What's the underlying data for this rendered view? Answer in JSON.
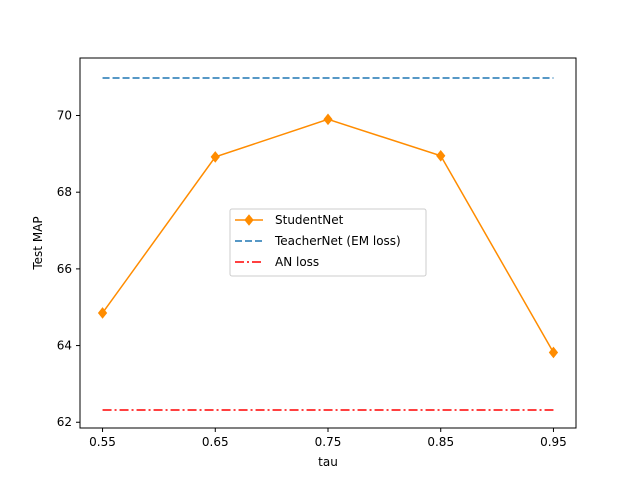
{
  "chart_data": {
    "type": "line",
    "title": "",
    "xlabel": "tau",
    "ylabel": "Test MAP",
    "x": [
      0.55,
      0.65,
      0.75,
      0.85,
      0.95
    ],
    "x_tick_labels": [
      "0.55",
      "0.65",
      "0.75",
      "0.85",
      "0.95"
    ],
    "y_ticks": [
      62,
      64,
      66,
      68,
      70
    ],
    "y_tick_labels": [
      "62",
      "64",
      "66",
      "68",
      "70"
    ],
    "xlim": [
      0.53,
      0.97
    ],
    "ylim": [
      61.85,
      71.5
    ],
    "grid": false,
    "legend_position": "center",
    "series": [
      {
        "name": "StudentNet",
        "values": [
          64.85,
          68.92,
          69.9,
          68.95,
          63.82
        ],
        "color": "#ff8c00",
        "style": "solid",
        "marker": "diamond"
      },
      {
        "name": "TeacherNet (EM loss)",
        "values": [
          70.98,
          70.98,
          70.98,
          70.98,
          70.98
        ],
        "color": "#1f77b4",
        "style": "dashed",
        "marker": "none"
      },
      {
        "name": "AN loss",
        "values": [
          62.32,
          62.32,
          62.32,
          62.32,
          62.32
        ],
        "color": "#ff0000",
        "style": "dashdot",
        "marker": "none"
      }
    ]
  }
}
